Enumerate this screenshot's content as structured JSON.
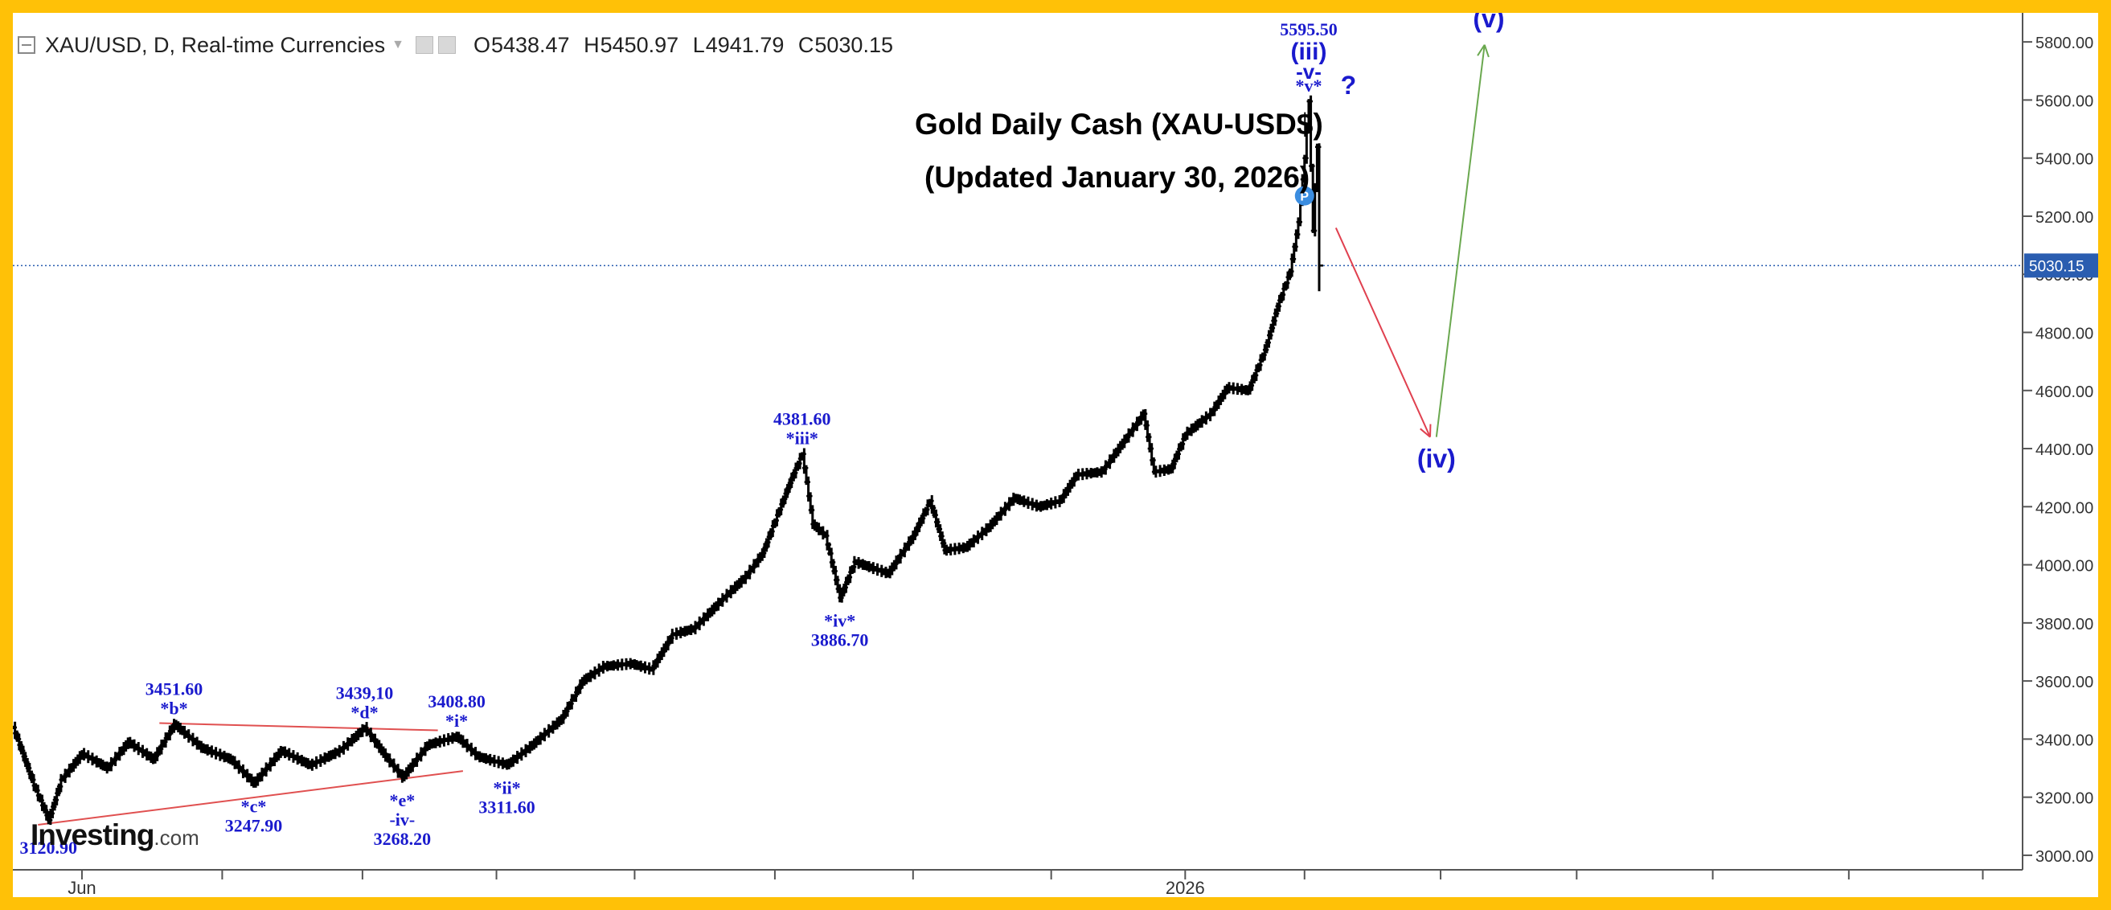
{
  "header": {
    "symbol_line": "XAU/USD, D, Real-time Currencies",
    "open_label": "O",
    "open": "5438.47",
    "high_label": "H",
    "high": "5450.97",
    "low_label": "L",
    "low": "4941.79",
    "close_label": "C",
    "close": "5030.15"
  },
  "titles": {
    "line1": "Gold Daily Cash (XAU-USD$)",
    "line2": "(Updated January 30, 2026)"
  },
  "logo": {
    "main": "Investing",
    "suffix": ".com"
  },
  "colors": {
    "frame": "#FFC107",
    "background": "#FFFFFF",
    "bars": "#000000",
    "annotation": "#1A1ACD",
    "trendline": "#E05050",
    "arrow_down": "#E0404F",
    "arrow_up": "#6AA84F",
    "price_line": "#2A5DB0"
  },
  "chart_data": {
    "type": "ohlc",
    "title": "Gold Daily Cash (XAU-USD$)",
    "subtitle": "(Updated January 30, 2026)",
    "series_name": "XAU/USD, D, Real-time Currencies",
    "y_axis_position": "right",
    "ylim": [
      2950,
      5900
    ],
    "y_ticks": [
      "3000.00",
      "3200.00",
      "3400.00",
      "3600.00",
      "3800.00",
      "4000.00",
      "4200.00",
      "4400.00",
      "4600.00",
      "4800.00",
      "5000.00",
      "5200.00",
      "5400.00",
      "5600.00",
      "5800.00"
    ],
    "x_ticks": [
      {
        "label": "Jun",
        "bar": 33
      },
      {
        "label": "",
        "bar": 100
      },
      {
        "label": "",
        "bar": 167
      },
      {
        "label": "",
        "bar": 231
      },
      {
        "label": "",
        "bar": 297
      },
      {
        "label": "",
        "bar": 364
      },
      {
        "label": "",
        "bar": 430
      },
      {
        "label": "",
        "bar": 496
      },
      {
        "label": "2026",
        "bar": 560
      },
      {
        "label": "",
        "bar": 617
      },
      {
        "label": "",
        "bar": 682
      },
      {
        "label": "",
        "bar": 747
      },
      {
        "label": "",
        "bar": 812
      },
      {
        "label": "",
        "bar": 877
      },
      {
        "label": "",
        "bar": 941
      }
    ],
    "total_bars": 960,
    "last_price": "5030.15",
    "last_price_value": 5030.15,
    "pivots": [
      {
        "bar": 0,
        "price": 3440
      },
      {
        "bar": 10,
        "price": 3240
      },
      {
        "bar": 17,
        "price": 3120.9
      },
      {
        "bar": 23,
        "price": 3260
      },
      {
        "bar": 33,
        "price": 3350
      },
      {
        "bar": 45,
        "price": 3300
      },
      {
        "bar": 55,
        "price": 3390
      },
      {
        "bar": 67,
        "price": 3330
      },
      {
        "bar": 77,
        "price": 3451.6
      },
      {
        "bar": 90,
        "price": 3370
      },
      {
        "bar": 104,
        "price": 3330
      },
      {
        "bar": 115,
        "price": 3247.9
      },
      {
        "bar": 128,
        "price": 3360
      },
      {
        "bar": 142,
        "price": 3310
      },
      {
        "bar": 156,
        "price": 3360
      },
      {
        "bar": 168,
        "price": 3439.1
      },
      {
        "bar": 178,
        "price": 3340
      },
      {
        "bar": 186,
        "price": 3268.2
      },
      {
        "bar": 198,
        "price": 3380
      },
      {
        "bar": 212,
        "price": 3408.8
      },
      {
        "bar": 222,
        "price": 3340
      },
      {
        "bar": 236,
        "price": 3311.6
      },
      {
        "bar": 248,
        "price": 3380
      },
      {
        "bar": 262,
        "price": 3470
      },
      {
        "bar": 272,
        "price": 3600
      },
      {
        "bar": 282,
        "price": 3650
      },
      {
        "bar": 295,
        "price": 3660
      },
      {
        "bar": 305,
        "price": 3640
      },
      {
        "bar": 315,
        "price": 3760
      },
      {
        "bar": 325,
        "price": 3780
      },
      {
        "bar": 340,
        "price": 3890
      },
      {
        "bar": 350,
        "price": 3960
      },
      {
        "bar": 358,
        "price": 4040
      },
      {
        "bar": 366,
        "price": 4190
      },
      {
        "bar": 372,
        "price": 4300
      },
      {
        "bar": 377,
        "price": 4381.6
      },
      {
        "bar": 382,
        "price": 4140
      },
      {
        "bar": 388,
        "price": 4100
      },
      {
        "bar": 395,
        "price": 3886.7
      },
      {
        "bar": 402,
        "price": 4010
      },
      {
        "bar": 410,
        "price": 3990
      },
      {
        "bar": 418,
        "price": 3970
      },
      {
        "bar": 430,
        "price": 4100
      },
      {
        "bar": 438,
        "price": 4220
      },
      {
        "bar": 445,
        "price": 4050
      },
      {
        "bar": 455,
        "price": 4060
      },
      {
        "bar": 466,
        "price": 4130
      },
      {
        "bar": 478,
        "price": 4230
      },
      {
        "bar": 490,
        "price": 4200
      },
      {
        "bar": 500,
        "price": 4220
      },
      {
        "bar": 508,
        "price": 4310
      },
      {
        "bar": 520,
        "price": 4320
      },
      {
        "bar": 530,
        "price": 4420
      },
      {
        "bar": 540,
        "price": 4520
      },
      {
        "bar": 545,
        "price": 4320
      },
      {
        "bar": 553,
        "price": 4330
      },
      {
        "bar": 560,
        "price": 4450
      },
      {
        "bar": 572,
        "price": 4520
      },
      {
        "bar": 580,
        "price": 4610
      },
      {
        "bar": 590,
        "price": 4600
      },
      {
        "bar": 598,
        "price": 4740
      },
      {
        "bar": 604,
        "price": 4890
      },
      {
        "bar": 610,
        "price": 5010
      },
      {
        "bar": 614,
        "price": 5180
      },
      {
        "bar": 617,
        "price": 5400
      },
      {
        "bar": 619,
        "price": 5595.5
      },
      {
        "bar": 621,
        "price": 5150
      },
      {
        "bar": 623,
        "price": 5438.47
      },
      {
        "bar": 624,
        "price": 5030.15
      }
    ],
    "annotations": [
      {
        "text": "3120.90",
        "bar": 17,
        "price": 3120.9,
        "place": "below"
      },
      {
        "text": "3451.60",
        "bar": 77,
        "price": 3451.6,
        "place": "above2"
      },
      {
        "text": "*b*",
        "bar": 77,
        "price": 3451.6,
        "place": "above1"
      },
      {
        "text": "*c*",
        "bar": 115,
        "price": 3247.9,
        "place": "below1"
      },
      {
        "text": "3247.90",
        "bar": 115,
        "price": 3247.9,
        "place": "below2"
      },
      {
        "text": "3439,10",
        "bar": 168,
        "price": 3439.1,
        "place": "above2"
      },
      {
        "text": "*d*",
        "bar": 168,
        "price": 3439.1,
        "place": "above1"
      },
      {
        "text": "*e*",
        "bar": 186,
        "price": 3268.2,
        "place": "below1"
      },
      {
        "text": "-iv-",
        "bar": 186,
        "price": 3268.2,
        "place": "below2"
      },
      {
        "text": "3268.20",
        "bar": 186,
        "price": 3268.2,
        "place": "below3"
      },
      {
        "text": "3408.80",
        "bar": 212,
        "price": 3408.8,
        "place": "above2"
      },
      {
        "text": "*i*",
        "bar": 212,
        "price": 3408.8,
        "place": "above1"
      },
      {
        "text": "*ii*",
        "bar": 236,
        "price": 3311.6,
        "place": "below1"
      },
      {
        "text": "3311.60",
        "bar": 236,
        "price": 3311.6,
        "place": "below2"
      },
      {
        "text": "4381.60",
        "bar": 377,
        "price": 4381.6,
        "place": "above2"
      },
      {
        "text": "*iii*",
        "bar": 377,
        "price": 4381.6,
        "place": "above1"
      },
      {
        "text": "*iv*",
        "bar": 395,
        "price": 3886.7,
        "place": "below1"
      },
      {
        "text": "3886.70",
        "bar": 395,
        "price": 3886.7,
        "place": "below2"
      },
      {
        "text": "5595.50",
        "bar": 619,
        "price": 5595.5,
        "place": "above4"
      },
      {
        "text": "(iii)",
        "bar": 619,
        "price": 5595.5,
        "place": "above3big"
      },
      {
        "text": "-v-",
        "bar": 619,
        "price": 5595.5,
        "place": "above2big"
      },
      {
        "text": "*v*",
        "bar": 619,
        "price": 5595.5,
        "place": "above1"
      },
      {
        "text": "?",
        "bar": 638,
        "price": 5620,
        "place": "free"
      },
      {
        "text": "(iv)",
        "bar": 680,
        "price": 4335,
        "place": "free"
      },
      {
        "text": "(v)",
        "bar": 705,
        "price": 5850,
        "place": "free"
      },
      {
        "text": "P",
        "bar": 617,
        "price": 5270,
        "place": "badge"
      }
    ],
    "trendlines": [
      {
        "from": {
          "bar": 70,
          "price": 3455
        },
        "to": {
          "bar": 203,
          "price": 3430
        },
        "color": "#E05050"
      },
      {
        "from": {
          "bar": 12,
          "price": 3105
        },
        "to": {
          "bar": 215,
          "price": 3290
        },
        "color": "#E05050"
      }
    ],
    "projections": [
      {
        "from": {
          "bar": 632,
          "price": 5160
        },
        "to": {
          "bar": 677,
          "price": 4440
        },
        "color": "#E0404F"
      },
      {
        "from": {
          "bar": 680,
          "price": 4440
        },
        "to": {
          "bar": 703,
          "price": 5790
        },
        "color": "#6AA84F"
      }
    ]
  }
}
